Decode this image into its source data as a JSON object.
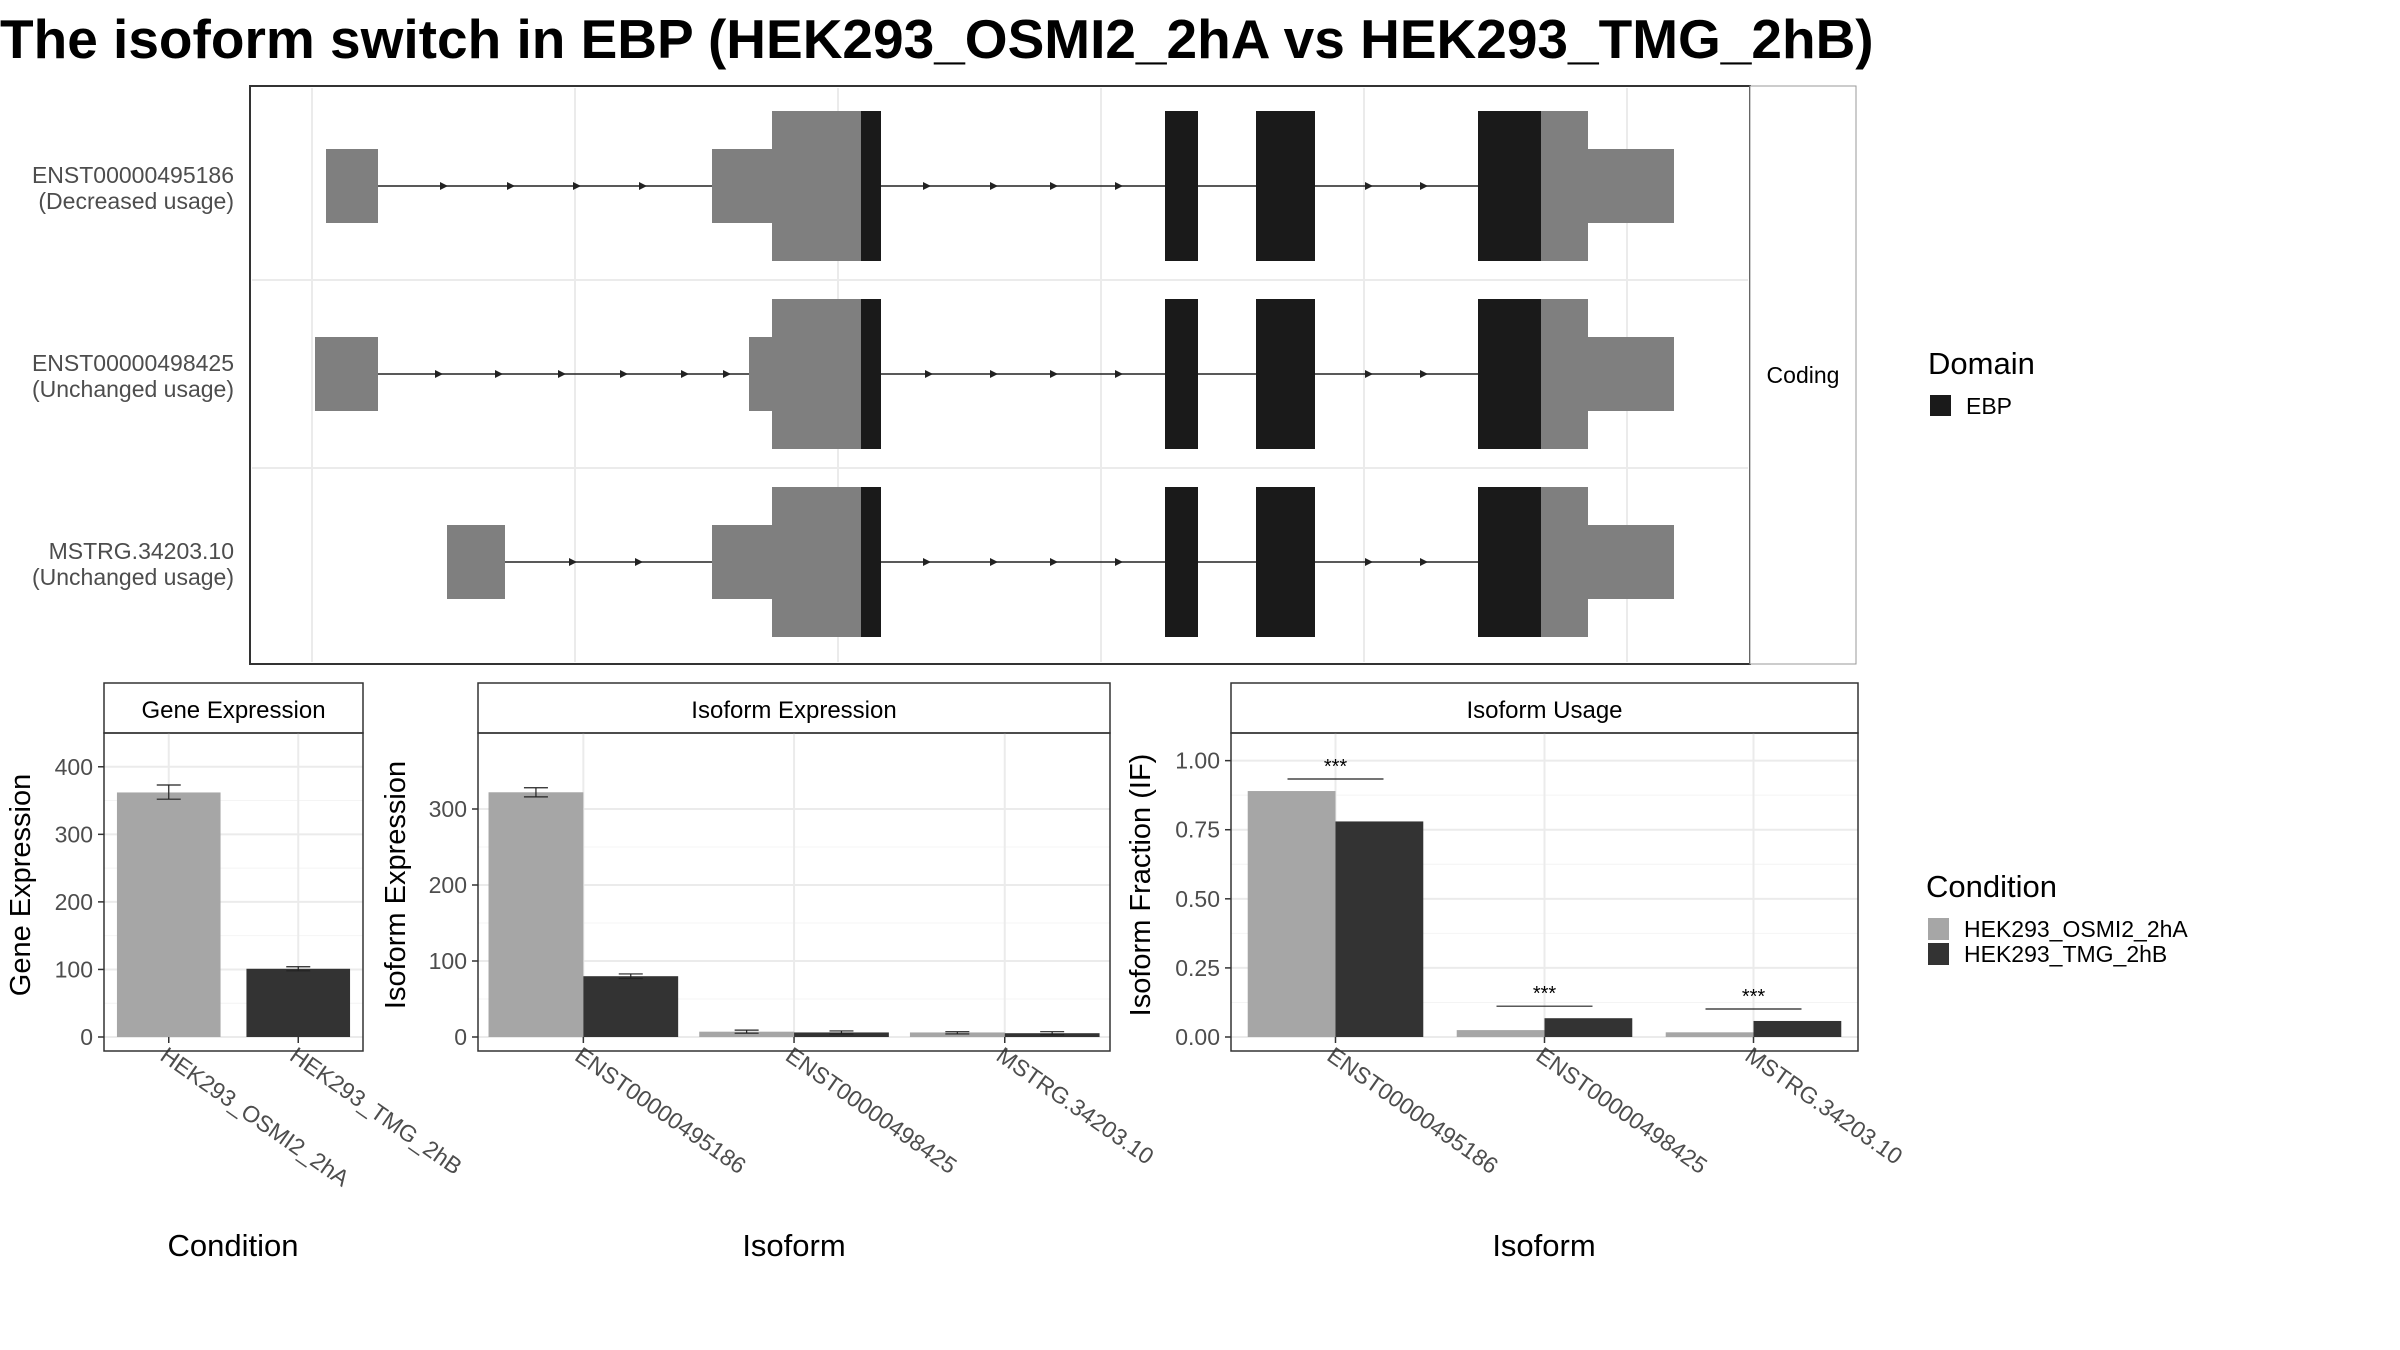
{
  "title": "The isoform switch in EBP (HEK293_OSMI2_2hA vs HEK293_TMG_2hB)",
  "colors": {
    "utr": "#7f7f7f",
    "cds": "#1a1a1a",
    "cond_a": "#a6a6a6",
    "cond_b": "#333333",
    "grid": "#ebebeb",
    "strip": "#ffffff",
    "panel_border": "#333333"
  },
  "structure": {
    "facet_label": "Coding",
    "transcripts": [
      {
        "id": "ENST00000495186",
        "usage": "(Decreased usage)"
      },
      {
        "id": "ENST00000498425",
        "usage": "(Unchanged usage)"
      },
      {
        "id": "MSTRG.34203.10",
        "usage": "(Unchanged usage)"
      }
    ]
  },
  "legends": {
    "domain": {
      "title": "Domain",
      "items": [
        {
          "label": "EBP",
          "color": "#1a1a1a"
        }
      ]
    },
    "condition": {
      "title": "Condition",
      "items": [
        {
          "label": "HEK293_OSMI2_2hA",
          "color": "#a6a6a6"
        },
        {
          "label": "HEK293_TMG_2hB",
          "color": "#333333"
        }
      ]
    }
  },
  "chart_data": [
    {
      "type": "bar",
      "title": "Gene Expression",
      "xlabel": "Condition",
      "ylabel": "Gene Expression",
      "categories": [
        "HEK293_OSMI2_2hA",
        "HEK293_TMG_2hB"
      ],
      "values": [
        362,
        101
      ],
      "errors": [
        [
          352,
          373
        ],
        [
          98,
          104
        ]
      ],
      "yticks": [
        0,
        100,
        200,
        300,
        400
      ],
      "ylim": [
        0,
        450
      ]
    },
    {
      "type": "bar",
      "title": "Isoform Expression",
      "xlabel": "Isoform",
      "ylabel": "Isoform Expression",
      "categories": [
        "ENST00000495186",
        "ENST00000498425",
        "MSTRG.34203.10"
      ],
      "series": [
        {
          "name": "HEK293_OSMI2_2hA",
          "values": [
            322,
            7,
            6
          ],
          "errors": [
            [
              316,
              328
            ],
            [
              5,
              9
            ],
            [
              4,
              7
            ]
          ]
        },
        {
          "name": "HEK293_TMG_2hB",
          "values": [
            80,
            6,
            5
          ],
          "errors": [
            [
              77,
              83
            ],
            [
              4,
              8
            ],
            [
              3,
              7
            ]
          ]
        }
      ],
      "yticks": [
        0,
        100,
        200,
        300
      ],
      "ylim": [
        0,
        400
      ]
    },
    {
      "type": "bar",
      "title": "Isoform Usage",
      "xlabel": "Isoform",
      "ylabel": "Isoform Fraction (IF)",
      "categories": [
        "ENST00000495186",
        "ENST00000498425",
        "MSTRG.34203.10"
      ],
      "series": [
        {
          "name": "HEK293_OSMI2_2hA",
          "values": [
            0.89,
            0.025,
            0.017
          ]
        },
        {
          "name": "HEK293_TMG_2hB",
          "values": [
            0.78,
            0.068,
            0.058
          ]
        }
      ],
      "significance": [
        "***",
        "***",
        "***"
      ],
      "yticks": [
        0,
        0.25,
        0.5,
        0.75,
        1.0
      ],
      "yticklabels": [
        "0.00",
        "0.25",
        "0.50",
        "0.75",
        "1.00"
      ],
      "ylim": [
        0,
        1.1
      ]
    }
  ]
}
